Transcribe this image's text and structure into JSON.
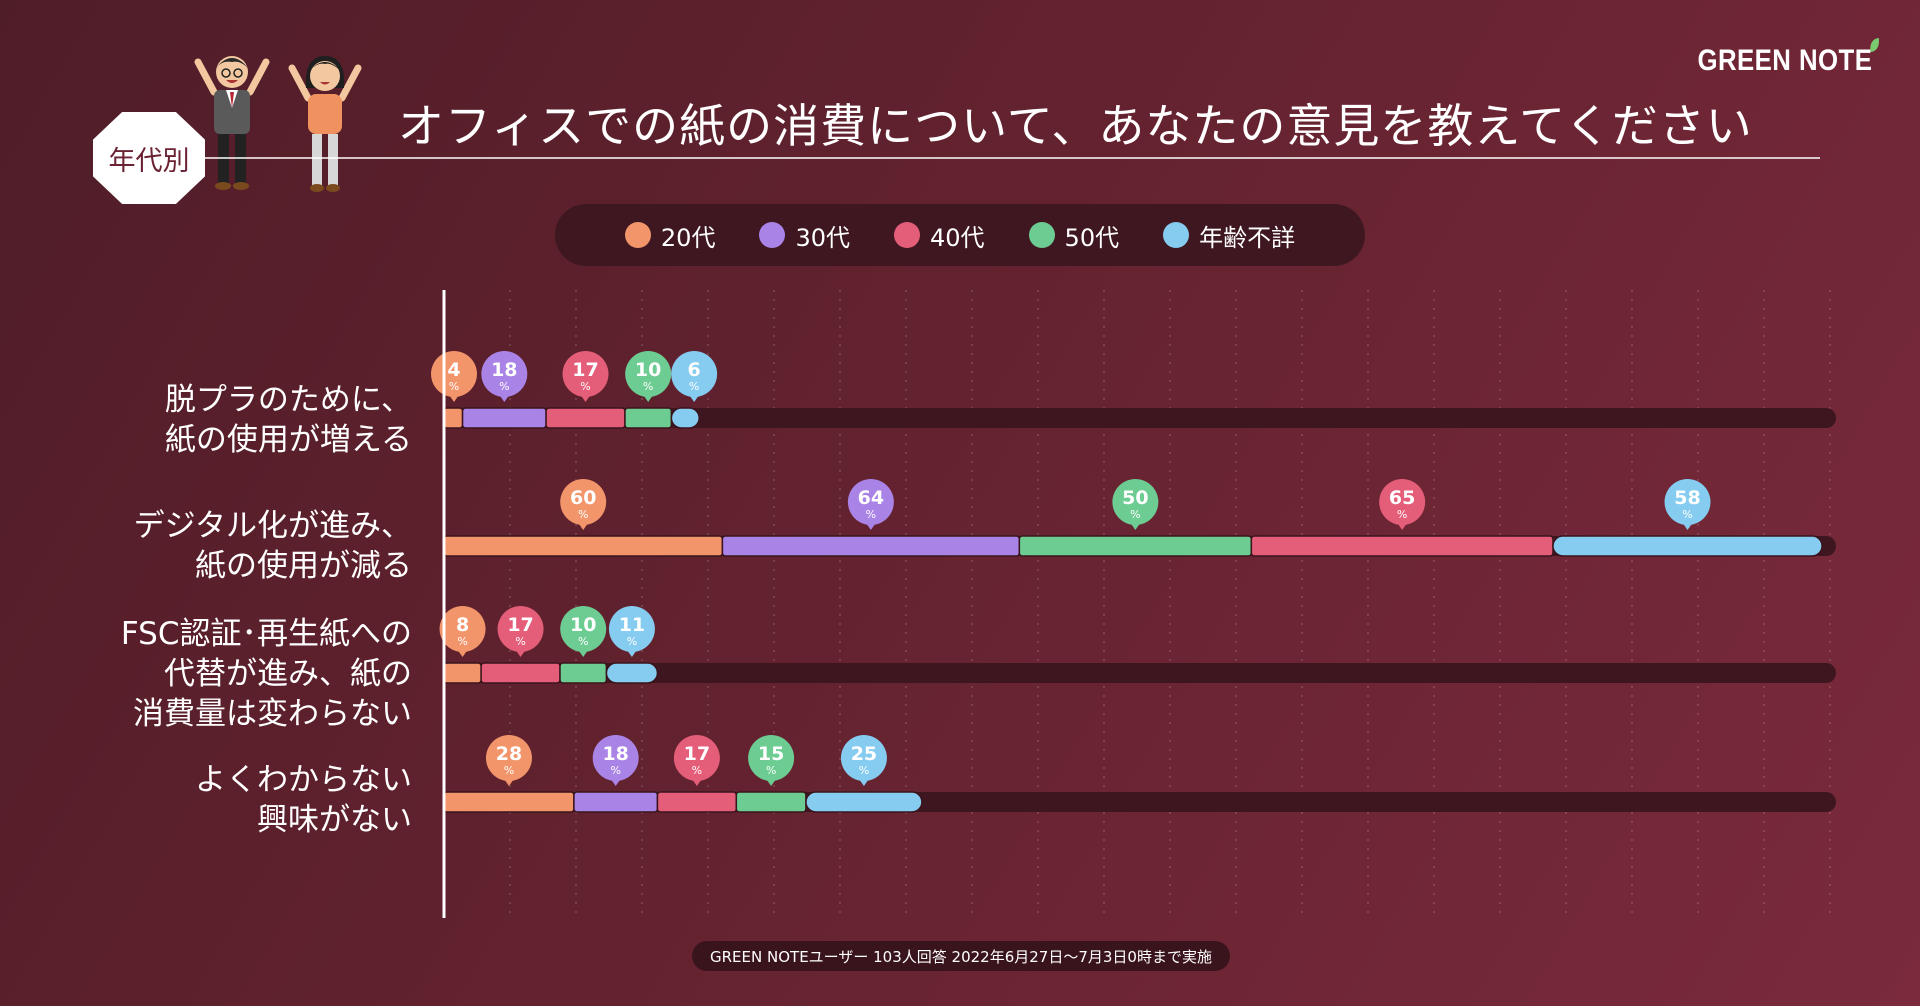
{
  "brand": "GREEN NOTE",
  "title": "オフィスでの紙の消費について、あなたの意見を教えてください",
  "group_label": "年代別",
  "footnote": "GREEN NOTEユーザー 103人回答 2022年6月27日〜7月3日0時まで実施",
  "colors": {
    "20代": "#f2956b",
    "30代": "#a983e6",
    "40代": "#e55e79",
    "50代": "#6ccc92",
    "年齢不詳": "#86ccf0",
    "track": "#3e1620",
    "background": "#5e2130"
  },
  "chart_data": {
    "type": "bar",
    "stacked": true,
    "orientation": "horizontal",
    "legend_position": "top-center",
    "grid": true,
    "value_unit": "%",
    "legend": [
      "20代",
      "30代",
      "40代",
      "50代",
      "年齢不詳"
    ],
    "xlim": [
      0,
      300
    ],
    "categories": [
      "脱プラのために、\n紙の使用が増える",
      "デジタル化が進み、\n紙の使用が減る",
      "FSC認証･再生紙への\n代替が進み、紙の\n消費量は変わらない",
      "よくわからない\n興味がない"
    ],
    "rows": [
      {
        "segments": [
          {
            "series": "20代",
            "value": 4
          },
          {
            "series": "30代",
            "value": 18
          },
          {
            "series": "40代",
            "value": 17
          },
          {
            "series": "50代",
            "value": 10
          },
          {
            "series": "年齢不詳",
            "value": 6
          }
        ]
      },
      {
        "segments": [
          {
            "series": "20代",
            "value": 60
          },
          {
            "series": "30代",
            "value": 64
          },
          {
            "series": "50代",
            "value": 50
          },
          {
            "series": "40代",
            "value": 65
          },
          {
            "series": "年齢不詳",
            "value": 58
          }
        ]
      },
      {
        "segments": [
          {
            "series": "20代",
            "value": 8
          },
          {
            "series": "40代",
            "value": 17
          },
          {
            "series": "50代",
            "value": 10
          },
          {
            "series": "年齢不詳",
            "value": 11
          }
        ]
      },
      {
        "segments": [
          {
            "series": "20代",
            "value": 28
          },
          {
            "series": "30代",
            "value": 18
          },
          {
            "series": "40代",
            "value": 17
          },
          {
            "series": "50代",
            "value": 15
          },
          {
            "series": "年齢不詳",
            "value": 25
          }
        ]
      }
    ]
  }
}
